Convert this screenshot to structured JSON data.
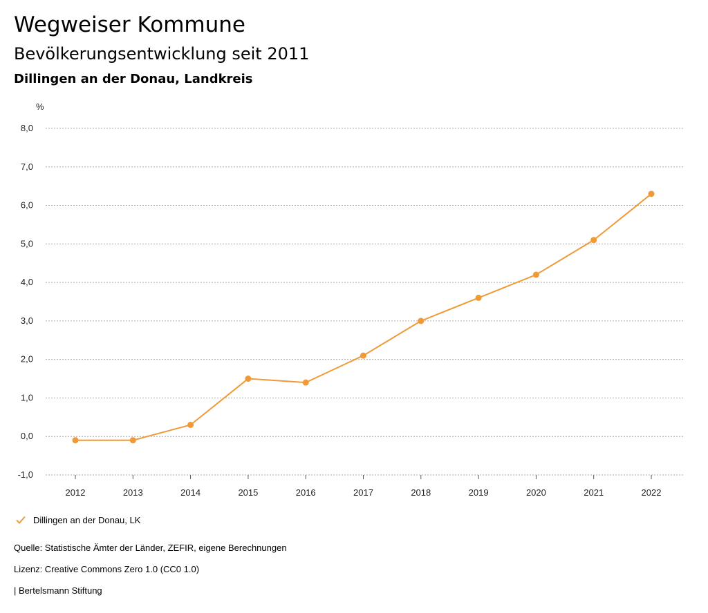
{
  "header": {
    "title": "Wegweiser Kommune",
    "subtitle": "Bevölkerungsentwicklung seit 2011",
    "region": "Dillingen an der Donau, Landkreis"
  },
  "colors": {
    "series": "#ef9a37",
    "grid": "#aaaaaa",
    "axis": "#555555"
  },
  "chart_data": {
    "type": "line",
    "title": "Bevölkerungsentwicklung seit 2011",
    "ylabel": "%",
    "xlabel": "",
    "ylim": [
      -1.0,
      8.0
    ],
    "yticks": [
      -1.0,
      0.0,
      1.0,
      2.0,
      3.0,
      4.0,
      5.0,
      6.0,
      7.0,
      8.0
    ],
    "ytick_labels": [
      "-1,0",
      "0,0",
      "1,0",
      "2,0",
      "3,0",
      "4,0",
      "5,0",
      "6,0",
      "7,0",
      "8,0"
    ],
    "categories": [
      "2012",
      "2013",
      "2014",
      "2015",
      "2016",
      "2017",
      "2018",
      "2019",
      "2020",
      "2021",
      "2022"
    ],
    "series": [
      {
        "name": "Dillingen an der Donau, LK",
        "values": [
          -0.1,
          -0.1,
          0.3,
          1.5,
          1.4,
          2.1,
          3.0,
          3.6,
          4.2,
          5.1,
          6.3
        ]
      }
    ],
    "grid": true,
    "legend": "bottom-left"
  },
  "footer": {
    "source": "Quelle: Statistische Ämter der Länder, ZEFIR, eigene Berechnungen",
    "license": "Lizenz: Creative Commons Zero 1.0 (CC0 1.0)",
    "publisher": "| Bertelsmann Stiftung"
  }
}
